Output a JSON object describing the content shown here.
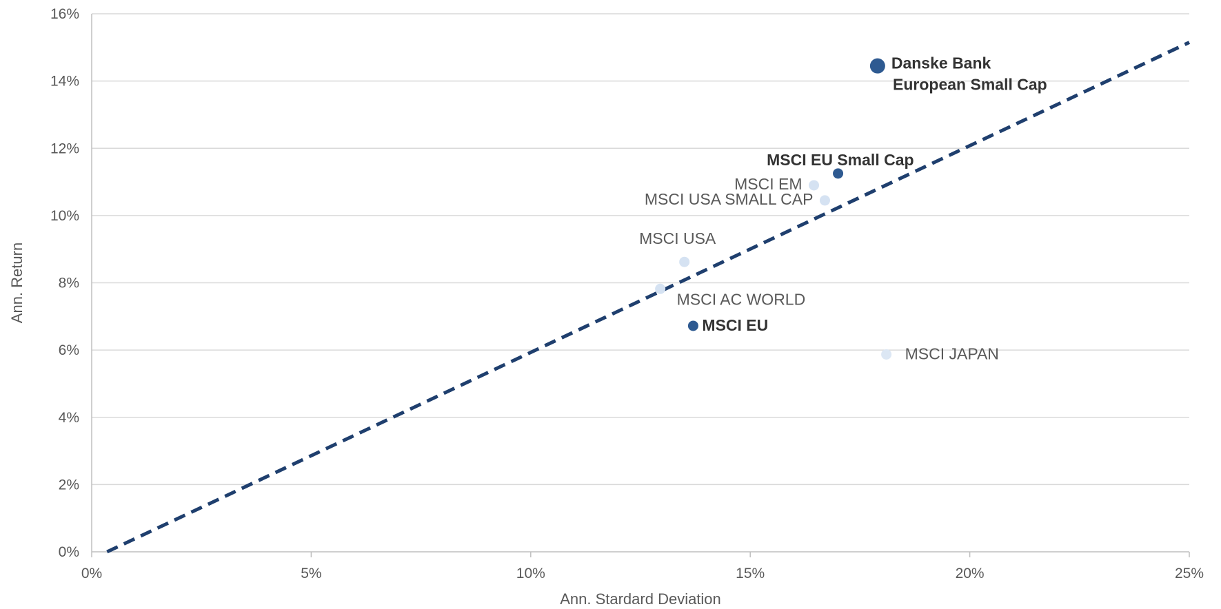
{
  "chart_data": {
    "type": "scatter",
    "xlabel": "Ann. Stardard Deviation",
    "ylabel": "Ann. Return",
    "xlim": [
      0,
      25
    ],
    "ylim": [
      0,
      16
    ],
    "x_ticks": [
      "0%",
      "5%",
      "10%",
      "15%",
      "20%",
      "25%"
    ],
    "y_ticks": [
      "0%",
      "2%",
      "4%",
      "6%",
      "8%",
      "10%",
      "12%",
      "14%",
      "16%"
    ],
    "grid": "horizontal",
    "trendline": {
      "style": "dashed",
      "color": "#1f3f6e",
      "x": [
        0.35,
        25.0
      ],
      "y": [
        0.0,
        15.15
      ]
    },
    "points": [
      {
        "label": "Danske Bank",
        "label2": "European Small Cap",
        "x": 17.9,
        "y": 14.45,
        "color": "#2e5a91",
        "size": "large",
        "bold": true,
        "label_pos": "right-two-line"
      },
      {
        "label": "MSCI EU Small Cap",
        "x": 17.0,
        "y": 11.25,
        "color": "#2e5a91",
        "size": "small",
        "bold": true,
        "label_pos": "above-left"
      },
      {
        "label": "MSCI EM",
        "x": 16.45,
        "y": 10.9,
        "color": "#d5e2f2",
        "size": "small",
        "bold": false,
        "label_pos": "left"
      },
      {
        "label": "MSCI USA SMALL CAP",
        "x": 16.7,
        "y": 10.45,
        "color": "#d5e2f2",
        "size": "small",
        "bold": false,
        "label_pos": "left"
      },
      {
        "label": "MSCI USA",
        "x": 13.5,
        "y": 8.62,
        "color": "#d5e2f2",
        "size": "small",
        "bold": false,
        "label_pos": "above"
      },
      {
        "label": "MSCI AC WORLD",
        "x": 12.95,
        "y": 7.82,
        "color": "#d5e2f2",
        "size": "small",
        "bold": false,
        "label_pos": "below-right"
      },
      {
        "label": "MSCI EU",
        "x": 13.7,
        "y": 6.72,
        "color": "#2e5a91",
        "size": "small",
        "bold": true,
        "label_pos": "right"
      },
      {
        "label": "MSCI JAPAN",
        "x": 18.1,
        "y": 5.87,
        "color": "#dce7f4",
        "size": "small",
        "bold": false,
        "label_pos": "right"
      }
    ]
  }
}
